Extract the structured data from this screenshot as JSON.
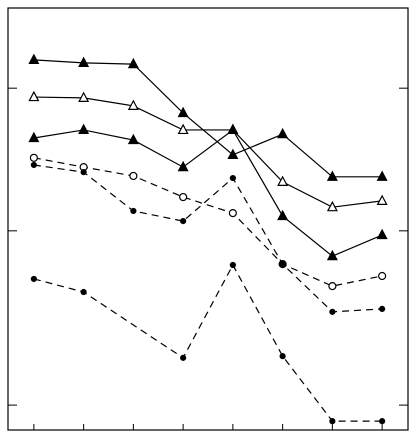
{
  "chart_data": {
    "type": "line",
    "x": [
      1,
      2,
      3,
      4,
      5,
      6,
      7,
      8
    ],
    "xlim": [
      0.48,
      8.52
    ],
    "xticks": [
      1,
      2,
      3,
      4,
      5,
      6,
      7,
      8
    ],
    "ylim": [
      0,
      100
    ],
    "yticks": [
      5.9,
      47.2,
      81.0
    ],
    "series": [
      {
        "color": "#000000",
        "dash": false,
        "marker": "triangle",
        "filled": true,
        "values": [
          87.7,
          87.0,
          86.7,
          75.1,
          65.2,
          70.1,
          60.0,
          60.0
        ]
      },
      {
        "color": "#000000",
        "dash": false,
        "marker": "triangle",
        "filled": false,
        "values": [
          78.9,
          78.7,
          76.8,
          71.1,
          71.1,
          58.8,
          52.8,
          54.3
        ]
      },
      {
        "color": "#000000",
        "dash": false,
        "marker": "triangle",
        "filled": true,
        "values": [
          69.2,
          71.1,
          68.7,
          62.3,
          71.1,
          50.7,
          41.2,
          46.2
        ]
      },
      {
        "color": "#000000",
        "dash": true,
        "marker": "circle",
        "filled": false,
        "values": [
          64.5,
          62.3,
          60.2,
          55.2,
          51.4,
          39.3,
          34.1,
          36.5
        ]
      },
      {
        "color": "#000000",
        "dash": true,
        "marker": "dot",
        "filled": true,
        "values": [
          62.8,
          61.1,
          51.9,
          49.5,
          59.7,
          39.3,
          28.0,
          28.7
        ]
      },
      {
        "color": "#000000",
        "dash": true,
        "marker": "dot",
        "filled": true,
        "x": [
          1,
          2,
          4,
          5,
          6,
          7,
          8
        ],
        "values": [
          35.8,
          32.7,
          17.1,
          39.1,
          17.5,
          2.1,
          2.1
        ]
      }
    ]
  }
}
